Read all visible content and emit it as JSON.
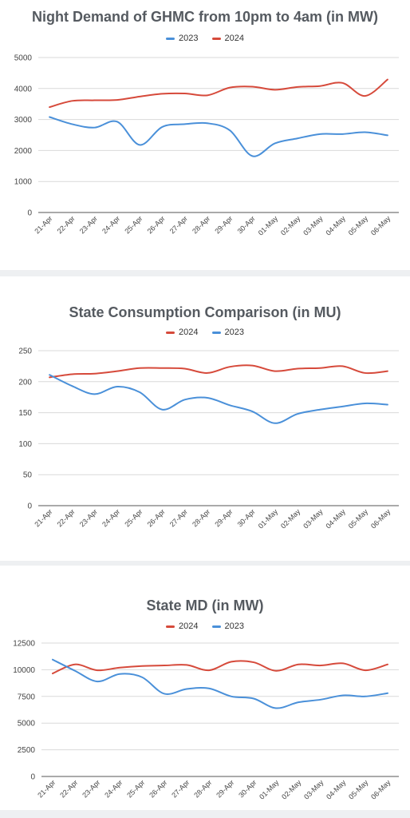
{
  "chart_data": [
    {
      "type": "line",
      "title": "Night Demand of GHMC from 10pm to 4am (in MW)",
      "categories": [
        "21-Apr",
        "22-Apr",
        "23-Apr",
        "24-Apr",
        "25-Apr",
        "26-Apr",
        "27-Apr",
        "28-Apr",
        "29-Apr",
        "30-Apr",
        "01-May",
        "02-May",
        "03-May",
        "04-May",
        "05-May",
        "06-May"
      ],
      "ylim": [
        0,
        5000
      ],
      "yticks": [
        "0",
        "1000",
        "2000",
        "3000",
        "4000",
        "5000"
      ],
      "grid": true,
      "legend_position": "top",
      "series": [
        {
          "name": "2023",
          "color": "#4a90d9",
          "values": [
            3080,
            2850,
            2740,
            2930,
            2180,
            2760,
            2850,
            2880,
            2650,
            1820,
            2230,
            2390,
            2530,
            2530,
            2590,
            2490
          ]
        },
        {
          "name": "2024",
          "color": "#d64a3b",
          "values": [
            3400,
            3600,
            3620,
            3630,
            3740,
            3830,
            3840,
            3780,
            4030,
            4060,
            3960,
            4050,
            4080,
            4180,
            3760,
            4290
          ]
        }
      ]
    },
    {
      "type": "line",
      "title": "State Consumption Comparison (in MU)",
      "categories": [
        "21-Apr",
        "22-Apr",
        "23-Apr",
        "24-Apr",
        "25-Apr",
        "26-Apr",
        "27-Apr",
        "28-Apr",
        "29-Apr",
        "30-Apr",
        "01-May",
        "02-May",
        "03-May",
        "04-May",
        "05-May",
        "06-May"
      ],
      "ylim": [
        0,
        250
      ],
      "yticks": [
        "0",
        "50",
        "100",
        "150",
        "200",
        "250"
      ],
      "grid": true,
      "legend_position": "top",
      "series": [
        {
          "name": "2024",
          "color": "#d64a3b",
          "values": [
            207,
            212,
            213,
            217,
            222,
            222,
            221,
            214,
            224,
            226,
            217,
            221,
            222,
            225,
            214,
            217
          ]
        },
        {
          "name": "2023",
          "color": "#4a90d9",
          "values": [
            211,
            193,
            180,
            192,
            183,
            155,
            171,
            174,
            162,
            152,
            133,
            148,
            155,
            160,
            165,
            163
          ]
        }
      ]
    },
    {
      "type": "line",
      "title": "State MD (in MW)",
      "categories": [
        "21-Apr",
        "22-Apr",
        "23-Apr",
        "24-Apr",
        "25-Apr",
        "26-Apr",
        "27-Apr",
        "28-Apr",
        "29-Apr",
        "30-Apr",
        "01-May",
        "02-May",
        "03-May",
        "04-May",
        "05-May",
        "06-May"
      ],
      "ylim": [
        0,
        12500
      ],
      "yticks": [
        "0",
        "2500",
        "5000",
        "7500",
        "10000",
        "12500"
      ],
      "grid": true,
      "legend_position": "top",
      "series": [
        {
          "name": "2024",
          "color": "#d64a3b",
          "values": [
            9650,
            10500,
            9950,
            10200,
            10350,
            10400,
            10450,
            9950,
            10750,
            10700,
            9900,
            10500,
            10400,
            10600,
            9950,
            10500
          ]
        },
        {
          "name": "2023",
          "color": "#4a90d9",
          "values": [
            10950,
            9900,
            8900,
            9600,
            9300,
            7750,
            8200,
            8250,
            7500,
            7300,
            6400,
            6950,
            7200,
            7600,
            7500,
            7800
          ]
        }
      ]
    }
  ]
}
